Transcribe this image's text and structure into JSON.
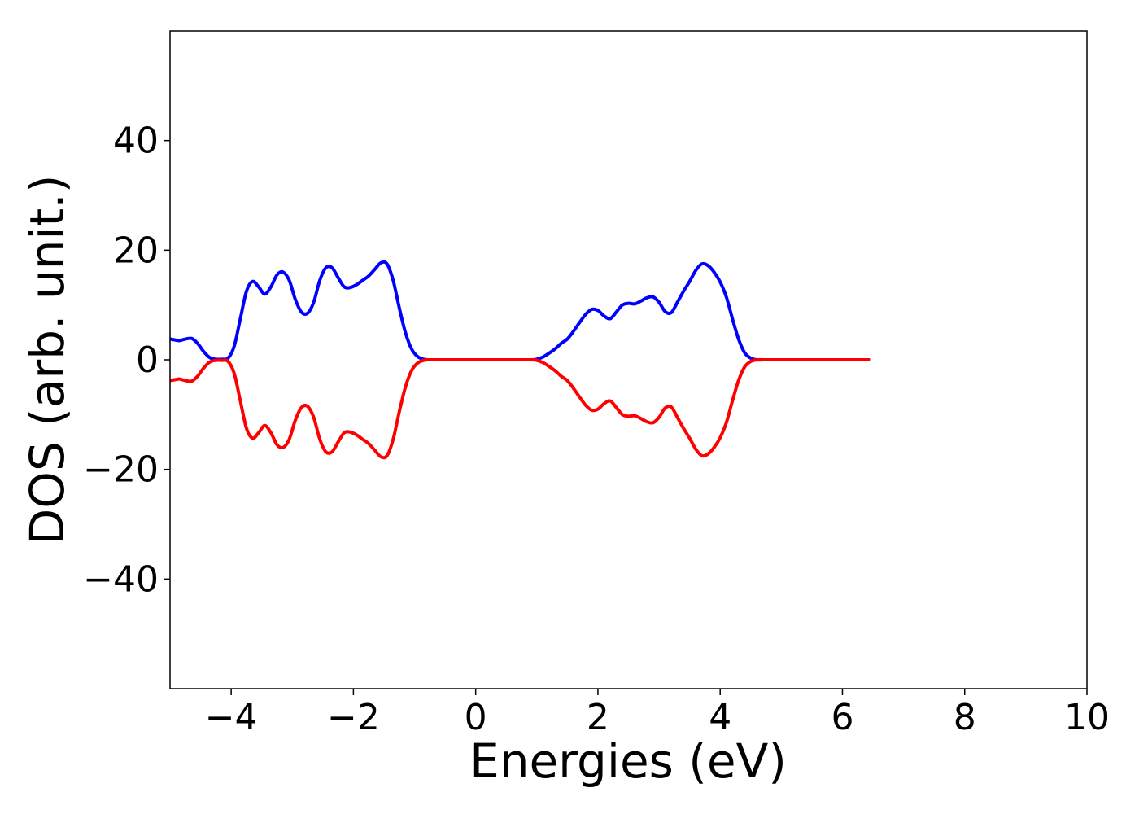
{
  "chart_data": {
    "type": "line",
    "title": "",
    "xlabel": "Energies (eV)",
    "ylabel": "DOS (arb. unit.)",
    "xlim": [
      -5,
      10
    ],
    "ylim": [
      -60,
      60
    ],
    "xticks": [
      -4,
      -2,
      0,
      2,
      4,
      6,
      8,
      10
    ],
    "xtick_labels": [
      "−4",
      "−2",
      "0",
      "2",
      "4",
      "6",
      "8",
      "10"
    ],
    "yticks": [
      -40,
      -20,
      0,
      20,
      40
    ],
    "ytick_labels": [
      "−40",
      "−20",
      "0",
      "20",
      "40"
    ],
    "grid": false,
    "legend": "none",
    "series": [
      {
        "color": "#0000ff",
        "x": [
          -5.0,
          -4.85,
          -4.78,
          -4.65,
          -4.55,
          -4.45,
          -4.35,
          -4.25,
          -4.15,
          -4.05,
          -3.95,
          -3.85,
          -3.75,
          -3.65,
          -3.55,
          -3.45,
          -3.35,
          -3.25,
          -3.15,
          -3.05,
          -2.95,
          -2.85,
          -2.75,
          -2.65,
          -2.55,
          -2.45,
          -2.35,
          -2.25,
          -2.15,
          -2.05,
          -1.95,
          -1.85,
          -1.75,
          -1.65,
          -1.55,
          -1.45,
          -1.35,
          -1.25,
          -1.15,
          -1.05,
          -0.95,
          -0.85,
          -0.75,
          -0.6,
          -0.4,
          0.0,
          0.5,
          0.9,
          1.0,
          1.1,
          1.2,
          1.3,
          1.4,
          1.5,
          1.6,
          1.7,
          1.8,
          1.9,
          2.0,
          2.1,
          2.2,
          2.3,
          2.4,
          2.5,
          2.6,
          2.7,
          2.8,
          2.9,
          3.0,
          3.1,
          3.2,
          3.3,
          3.4,
          3.5,
          3.6,
          3.7,
          3.8,
          3.9,
          4.0,
          4.1,
          4.2,
          4.3,
          4.4,
          4.5,
          4.6,
          4.7,
          4.8,
          5.0,
          6.0,
          6.45
        ],
        "y": [
          3.8,
          3.5,
          3.7,
          3.9,
          3.0,
          1.5,
          0.4,
          0.1,
          0.1,
          0.3,
          2.5,
          7.5,
          12.5,
          14.3,
          13.3,
          12.0,
          13.3,
          15.5,
          16.0,
          14.5,
          11.0,
          8.7,
          8.5,
          10.5,
          14.5,
          16.8,
          16.8,
          15.0,
          13.3,
          13.2,
          13.7,
          14.5,
          15.3,
          16.5,
          17.7,
          17.5,
          14.5,
          9.5,
          5.0,
          2.0,
          0.6,
          0.1,
          0.0,
          0.0,
          0.0,
          0.0,
          0.0,
          0.0,
          0.1,
          0.5,
          1.2,
          2.0,
          3.0,
          3.8,
          5.2,
          6.8,
          8.3,
          9.2,
          9.0,
          8.0,
          7.5,
          8.7,
          10.0,
          10.3,
          10.2,
          10.7,
          11.3,
          11.5,
          10.5,
          8.8,
          8.6,
          10.5,
          12.5,
          14.3,
          16.3,
          17.5,
          17.2,
          16.0,
          14.2,
          11.5,
          7.5,
          3.8,
          1.3,
          0.3,
          0.0,
          0.0,
          0.0,
          0.0,
          0.0,
          0.0
        ]
      },
      {
        "color": "#ff0000",
        "x": [
          -5.0,
          -4.85,
          -4.78,
          -4.65,
          -4.55,
          -4.45,
          -4.35,
          -4.25,
          -4.15,
          -4.05,
          -3.95,
          -3.85,
          -3.75,
          -3.65,
          -3.55,
          -3.45,
          -3.35,
          -3.25,
          -3.15,
          -3.05,
          -2.95,
          -2.85,
          -2.75,
          -2.65,
          -2.55,
          -2.45,
          -2.35,
          -2.25,
          -2.15,
          -2.05,
          -1.95,
          -1.85,
          -1.75,
          -1.65,
          -1.55,
          -1.45,
          -1.35,
          -1.25,
          -1.15,
          -1.05,
          -0.95,
          -0.85,
          -0.75,
          -0.6,
          -0.4,
          0.0,
          0.5,
          0.9,
          1.0,
          1.1,
          1.2,
          1.3,
          1.4,
          1.5,
          1.6,
          1.7,
          1.8,
          1.9,
          2.0,
          2.1,
          2.2,
          2.3,
          2.4,
          2.5,
          2.6,
          2.7,
          2.8,
          2.9,
          3.0,
          3.1,
          3.2,
          3.3,
          3.4,
          3.5,
          3.6,
          3.7,
          3.8,
          3.9,
          4.0,
          4.1,
          4.2,
          4.3,
          4.4,
          4.5,
          4.6,
          4.7,
          4.8,
          5.0,
          6.0,
          6.45
        ],
        "y": [
          -3.8,
          -3.5,
          -3.7,
          -3.9,
          -3.0,
          -1.5,
          -0.4,
          -0.1,
          -0.1,
          -0.3,
          -2.5,
          -7.5,
          -12.5,
          -14.3,
          -13.3,
          -12.0,
          -13.3,
          -15.5,
          -16.0,
          -14.5,
          -11.0,
          -8.7,
          -8.5,
          -10.5,
          -14.5,
          -16.8,
          -16.8,
          -15.0,
          -13.3,
          -13.2,
          -13.7,
          -14.5,
          -15.3,
          -16.5,
          -17.7,
          -17.5,
          -14.5,
          -9.5,
          -5.0,
          -2.0,
          -0.6,
          -0.1,
          0.0,
          0.0,
          0.0,
          0.0,
          0.0,
          0.0,
          -0.1,
          -0.5,
          -1.2,
          -2.0,
          -3.0,
          -3.8,
          -5.2,
          -6.8,
          -8.3,
          -9.2,
          -9.0,
          -8.0,
          -7.5,
          -8.7,
          -10.0,
          -10.3,
          -10.2,
          -10.7,
          -11.3,
          -11.5,
          -10.5,
          -8.8,
          -8.6,
          -10.5,
          -12.5,
          -14.3,
          -16.3,
          -17.5,
          -17.2,
          -16.0,
          -14.2,
          -11.5,
          -7.5,
          -3.8,
          -1.3,
          -0.3,
          0.0,
          0.0,
          0.0,
          0.0,
          0.0,
          0.0
        ]
      }
    ]
  }
}
